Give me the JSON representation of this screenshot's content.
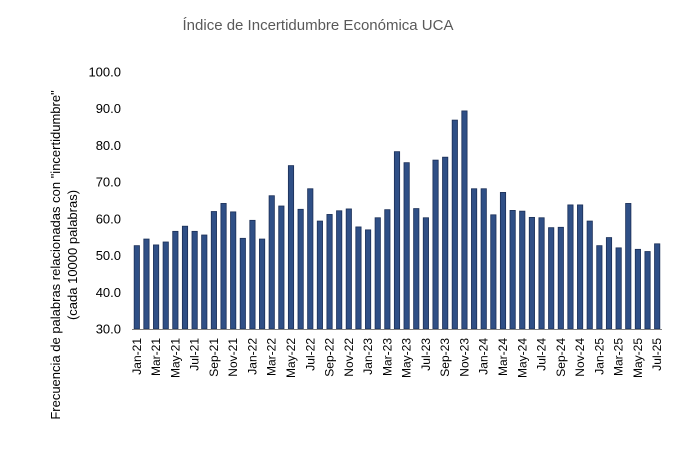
{
  "chart_data": {
    "type": "bar",
    "title": "Índice de Incertidumbre Económica UCA",
    "ylabel_line1": "Frecuencia de palabras relacionadas con \"incertidumbre\"",
    "ylabel_line2": "(cada 10000 palabras)",
    "xlabel": "",
    "ylim": [
      30,
      100
    ],
    "yticks": [
      "30.0",
      "40.0",
      "50.0",
      "60.0",
      "70.0",
      "80.0",
      "90.0",
      "100.0"
    ],
    "grid": false,
    "legend": "none",
    "colors": {
      "bar_fill": "#2f4f86",
      "bar_stroke": "#1b2f57",
      "title": "#595959",
      "text": "#000000"
    },
    "categories": [
      "Jan-21",
      "Feb-21",
      "Mar-21",
      "Apr-21",
      "May-21",
      "Jun-21",
      "Jul-21",
      "Aug-21",
      "Sep-21",
      "Oct-21",
      "Nov-21",
      "Dec-21",
      "Jan-22",
      "Feb-22",
      "Mar-22",
      "Apr-22",
      "May-22",
      "Jun-22",
      "Jul-22",
      "Aug-22",
      "Sep-22",
      "Oct-22",
      "Nov-22",
      "Dec-22",
      "Jan-23",
      "Feb-23",
      "Mar-23",
      "Apr-23",
      "May-23",
      "Jun-23",
      "Jul-23",
      "Aug-23",
      "Sep-23",
      "Oct-23",
      "Nov-23",
      "Dec-23",
      "Jan-24",
      "Feb-24",
      "Mar-24",
      "Apr-24",
      "May-24",
      "Jun-24",
      "Jul-24",
      "Aug-24",
      "Sep-24",
      "Oct-24",
      "Nov-24",
      "Dec-24",
      "Jan-25",
      "Feb-25",
      "Mar-25",
      "Apr-25",
      "May-25",
      "Jun-25",
      "Jul-25"
    ],
    "tick_labels": [
      "Jan-21",
      "Mar-21",
      "May-21",
      "Jul-21",
      "Sep-21",
      "Nov-21",
      "Jan-22",
      "Mar-22",
      "May-22",
      "Jul-22",
      "Sep-22",
      "Nov-22",
      "Jan-23",
      "Mar-23",
      "May-23",
      "Jul-23",
      "Sep-23",
      "Nov-23",
      "Jan-24",
      "Mar-24",
      "May-24",
      "Jul-24",
      "Sep-24",
      "Nov-24",
      "Jan-25",
      "Mar-25",
      "May-25",
      "Jul-25"
    ],
    "values": [
      52.7,
      54.5,
      52.9,
      53.7,
      56.6,
      58.0,
      56.6,
      55.6,
      62.0,
      64.2,
      61.9,
      54.7,
      59.6,
      54.5,
      66.3,
      63.5,
      74.5,
      62.6,
      68.2,
      59.4,
      61.2,
      62.2,
      62.7,
      57.8,
      57.0,
      60.3,
      62.5,
      78.3,
      75.3,
      62.8,
      60.3,
      76.0,
      76.8,
      86.9,
      89.4,
      68.2,
      68.2,
      61.1,
      67.2,
      62.3,
      62.1,
      60.4,
      60.3,
      57.6,
      57.7,
      63.8,
      63.8,
      59.4,
      52.7,
      54.9,
      52.1,
      64.2,
      51.7,
      51.1,
      53.2
    ]
  }
}
